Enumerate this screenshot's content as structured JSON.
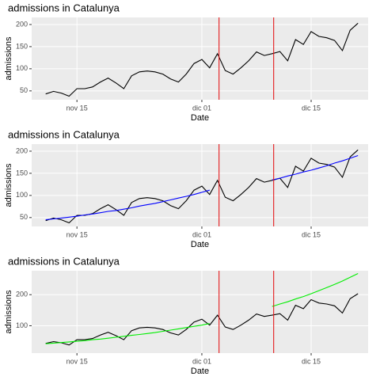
{
  "chart_data": [
    {
      "type": "line",
      "title": "admissions in Catalunya",
      "xlabel": "Date",
      "ylabel": "admissions",
      "x": [
        11,
        12,
        13,
        14,
        15,
        16,
        17,
        18,
        19,
        20,
        21,
        22,
        23,
        24,
        25,
        26,
        27,
        28,
        29,
        30,
        31,
        32,
        33,
        34,
        35,
        36,
        37,
        38,
        39,
        40,
        41,
        42,
        43,
        44,
        45,
        46,
        47,
        48,
        49,
        50,
        51
      ],
      "series": [
        {
          "color": "#000000",
          "values": [
            43,
            49,
            45,
            38,
            55,
            55,
            59,
            70,
            79,
            68,
            55,
            84,
            93,
            95,
            93,
            88,
            77,
            70,
            88,
            112,
            121,
            102,
            134,
            96,
            88,
            102,
            118,
            138,
            130,
            134,
            139,
            118,
            166,
            155,
            184,
            173,
            170,
            164,
            141,
            187,
            203
          ]
        }
      ],
      "vlines": [
        33.2,
        40.2
      ],
      "vline_color": "#e41a1c",
      "xlim": [
        9.2,
        52.3
      ],
      "xticks": [
        {
          "value": 15,
          "label": "nov 15"
        },
        {
          "value": 31,
          "label": "dic 01"
        },
        {
          "value": 45,
          "label": "dic 15"
        }
      ],
      "ylim": [
        30,
        216
      ],
      "yticks": [
        50,
        100,
        150,
        200
      ],
      "grid": true
    },
    {
      "type": "line",
      "title": "admissions in Catalunya",
      "xlabel": "Date",
      "ylabel": "admissions",
      "x": [
        11,
        12,
        13,
        14,
        15,
        16,
        17,
        18,
        19,
        20,
        21,
        22,
        23,
        24,
        25,
        26,
        27,
        28,
        29,
        30,
        31,
        32,
        33,
        34,
        35,
        36,
        37,
        38,
        39,
        40,
        41,
        42,
        43,
        44,
        45,
        46,
        47,
        48,
        49,
        50,
        51
      ],
      "series": [
        {
          "color": "#000000",
          "values": [
            43,
            49,
            45,
            38,
            55,
            55,
            59,
            70,
            79,
            68,
            55,
            84,
            93,
            95,
            93,
            88,
            77,
            70,
            88,
            112,
            121,
            102,
            134,
            96,
            88,
            102,
            118,
            138,
            130,
            134,
            139,
            118,
            166,
            155,
            184,
            173,
            170,
            164,
            141,
            187,
            203
          ]
        },
        {
          "color": "#0000ff",
          "values": [
            45,
            47,
            49,
            51,
            53,
            56,
            58,
            61,
            64,
            66,
            69,
            72,
            76,
            79,
            82,
            86,
            90,
            94,
            98,
            102,
            107,
            112,
            null,
            null,
            null,
            null,
            null,
            null,
            null,
            135,
            139,
            144,
            148,
            153,
            157,
            162,
            167,
            173,
            178,
            184,
            190
          ]
        }
      ],
      "vlines": [
        33.2,
        40.2
      ],
      "vline_color": "#e41a1c",
      "xlim": [
        9.2,
        52.3
      ],
      "xticks": [
        {
          "value": 15,
          "label": "nov 15"
        },
        {
          "value": 31,
          "label": "dic 01"
        },
        {
          "value": 45,
          "label": "dic 15"
        }
      ],
      "ylim": [
        30,
        216
      ],
      "yticks": [
        50,
        100,
        150,
        200
      ],
      "grid": true
    },
    {
      "type": "line",
      "title": "admissions in Catalunya",
      "xlabel": "Date",
      "ylabel": "admissions",
      "x": [
        11,
        12,
        13,
        14,
        15,
        16,
        17,
        18,
        19,
        20,
        21,
        22,
        23,
        24,
        25,
        26,
        27,
        28,
        29,
        30,
        31,
        32,
        33,
        34,
        35,
        36,
        37,
        38,
        39,
        40,
        41,
        42,
        43,
        44,
        45,
        46,
        47,
        48,
        49,
        50,
        51
      ],
      "series": [
        {
          "color": "#000000",
          "values": [
            43,
            49,
            45,
            38,
            55,
            55,
            59,
            70,
            79,
            68,
            55,
            84,
            93,
            95,
            93,
            88,
            77,
            70,
            88,
            112,
            121,
            102,
            134,
            96,
            88,
            102,
            118,
            138,
            130,
            134,
            139,
            118,
            166,
            155,
            184,
            173,
            170,
            164,
            141,
            187,
            203
          ]
        },
        {
          "color": "#00ee00",
          "values": [
            42,
            44,
            46,
            48,
            50,
            52,
            55,
            57,
            60,
            63,
            66,
            69,
            72,
            75,
            78,
            82,
            86,
            90,
            94,
            98,
            102,
            107,
            null,
            null,
            null,
            null,
            null,
            null,
            null,
            162,
            170,
            177,
            186,
            194,
            203,
            213,
            223,
            233,
            244,
            256,
            268
          ]
        }
      ],
      "vlines": [
        33.2,
        40.2
      ],
      "vline_color": "#e41a1c",
      "xlim": [
        9.2,
        52.3
      ],
      "xticks": [
        {
          "value": 15,
          "label": "nov 15"
        },
        {
          "value": 31,
          "label": "dic 01"
        },
        {
          "value": 45,
          "label": "dic 15"
        }
      ],
      "ylim": [
        12,
        277
      ],
      "yticks": [
        100,
        200
      ],
      "grid": true
    }
  ]
}
